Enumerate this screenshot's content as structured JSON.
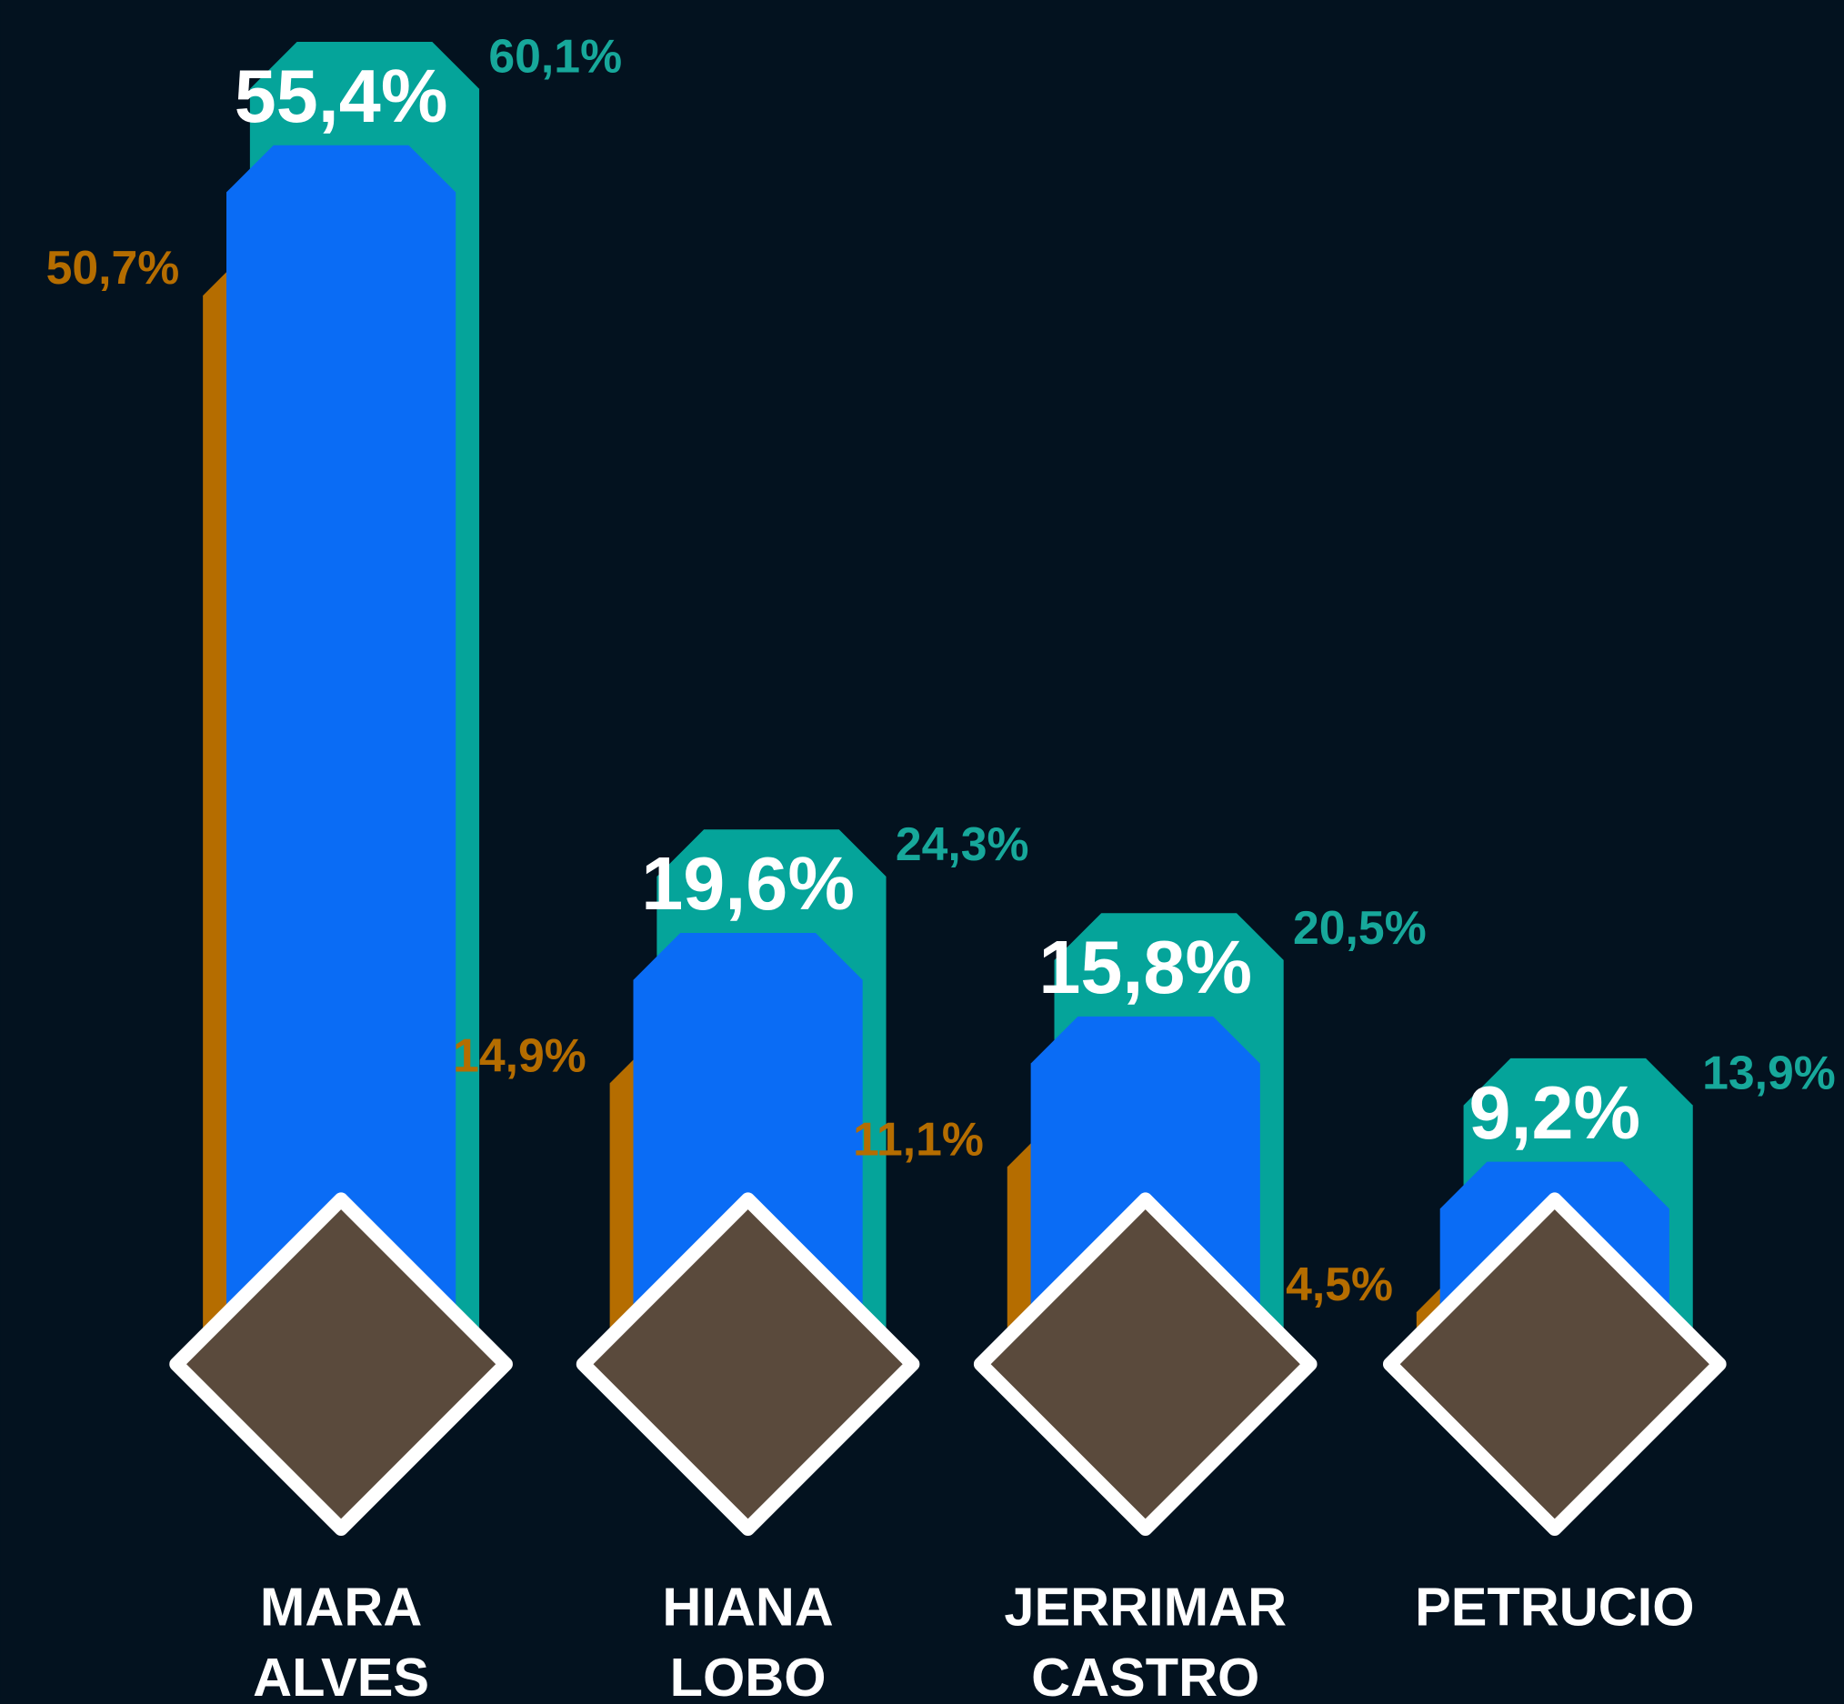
{
  "chart_data": {
    "type": "bar",
    "categories": [
      "MARA ALVES",
      "HIANA LOBO",
      "JERRIMAR CASTRO",
      "PETRUCIO"
    ],
    "series": [
      {
        "color": "#b56d00",
        "values": [
          50.7,
          14.9,
          11.1,
          4.5
        ],
        "value_labels": [
          "50,7%",
          "14,9%",
          "11,1%",
          "4,5%"
        ]
      },
      {
        "color": "#0a6cf5",
        "values": [
          55.4,
          19.6,
          15.8,
          9.2
        ],
        "value_labels": [
          "55,4%",
          "19,6%",
          "15,8%",
          "9,2%"
        ]
      },
      {
        "color": "#05a49a",
        "values": [
          60.1,
          24.3,
          20.5,
          13.9
        ],
        "value_labels": [
          "60,1%",
          "24,3%",
          "20,5%",
          "13,9%"
        ]
      }
    ],
    "ylim": [
      0,
      62
    ]
  }
}
